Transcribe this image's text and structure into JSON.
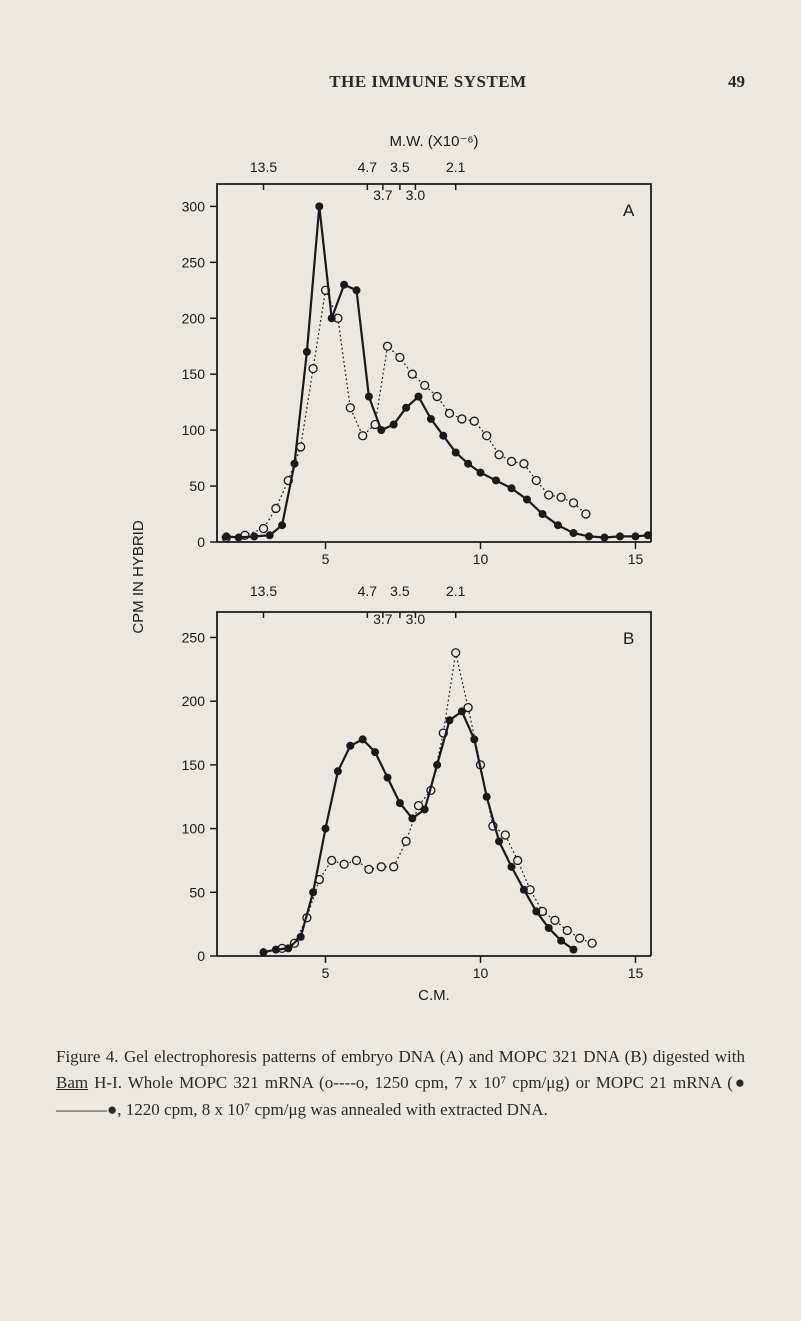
{
  "header": {
    "running_title": "THE IMMUNE SYSTEM",
    "page_number": "49"
  },
  "figure": {
    "overall_title": "M.W. (X10⁻⁶)",
    "ylabel": "CPM IN HYBRID",
    "xlabel": "C.M.",
    "mw_markers": [
      "13.5",
      "4.7",
      "3.5",
      "2.1"
    ],
    "mw_markers_inner": [
      "3.7",
      "3.0"
    ],
    "mw_marker_positions": [
      3.0,
      6.35,
      7.4,
      9.2
    ],
    "mw_marker_inner_positions": [
      6.85,
      7.9
    ],
    "panel_A": {
      "label": "A",
      "xlim": [
        1.5,
        15.5
      ],
      "ylim": [
        0,
        320
      ],
      "xticks": [
        5,
        10,
        15
      ],
      "yticks": [
        0,
        50,
        100,
        150,
        200,
        250,
        300
      ],
      "series_solid": {
        "marker": "filled-circle",
        "color": "#1a1a1a",
        "linewidth": 2.2,
        "points": [
          [
            1.8,
            5
          ],
          [
            2.2,
            4
          ],
          [
            2.7,
            5
          ],
          [
            3.2,
            6
          ],
          [
            3.6,
            15
          ],
          [
            4.0,
            70
          ],
          [
            4.4,
            170
          ],
          [
            4.8,
            300
          ],
          [
            5.2,
            200
          ],
          [
            5.6,
            230
          ],
          [
            6.0,
            225
          ],
          [
            6.4,
            130
          ],
          [
            6.8,
            100
          ],
          [
            7.2,
            105
          ],
          [
            7.6,
            120
          ],
          [
            8.0,
            130
          ],
          [
            8.4,
            110
          ],
          [
            8.8,
            95
          ],
          [
            9.2,
            80
          ],
          [
            9.6,
            70
          ],
          [
            10.0,
            62
          ],
          [
            10.5,
            55
          ],
          [
            11.0,
            48
          ],
          [
            11.5,
            38
          ],
          [
            12.0,
            25
          ],
          [
            12.5,
            15
          ],
          [
            13.0,
            8
          ],
          [
            13.5,
            5
          ],
          [
            14.0,
            4
          ],
          [
            14.5,
            5
          ],
          [
            15.0,
            5
          ],
          [
            15.4,
            6
          ]
        ]
      },
      "series_dotted": {
        "marker": "open-circle",
        "color": "#1a1a1a",
        "linewidth": 1.2,
        "linestyle": "dotted",
        "points": [
          [
            1.8,
            4
          ],
          [
            2.4,
            6
          ],
          [
            3.0,
            12
          ],
          [
            3.4,
            30
          ],
          [
            3.8,
            55
          ],
          [
            4.2,
            85
          ],
          [
            4.6,
            155
          ],
          [
            5.0,
            225
          ],
          [
            5.4,
            200
          ],
          [
            5.8,
            120
          ],
          [
            6.2,
            95
          ],
          [
            6.6,
            105
          ],
          [
            7.0,
            175
          ],
          [
            7.4,
            165
          ],
          [
            7.8,
            150
          ],
          [
            8.2,
            140
          ],
          [
            8.6,
            130
          ],
          [
            9.0,
            115
          ],
          [
            9.4,
            110
          ],
          [
            9.8,
            108
          ],
          [
            10.2,
            95
          ],
          [
            10.6,
            78
          ],
          [
            11.0,
            72
          ],
          [
            11.4,
            70
          ],
          [
            11.8,
            55
          ],
          [
            12.2,
            42
          ],
          [
            12.6,
            40
          ],
          [
            13.0,
            35
          ],
          [
            13.4,
            25
          ]
        ]
      }
    },
    "panel_B": {
      "label": "B",
      "xlim": [
        1.5,
        15.5
      ],
      "ylim": [
        0,
        270
      ],
      "xticks": [
        5,
        10,
        15
      ],
      "yticks": [
        0,
        50,
        100,
        150,
        200,
        250
      ],
      "series_solid": {
        "marker": "filled-circle",
        "color": "#1a1a1a",
        "linewidth": 2.2,
        "points": [
          [
            3.0,
            3
          ],
          [
            3.4,
            5
          ],
          [
            3.8,
            6
          ],
          [
            4.2,
            15
          ],
          [
            4.6,
            50
          ],
          [
            5.0,
            100
          ],
          [
            5.4,
            145
          ],
          [
            5.8,
            165
          ],
          [
            6.2,
            170
          ],
          [
            6.6,
            160
          ],
          [
            7.0,
            140
          ],
          [
            7.4,
            120
          ],
          [
            7.8,
            108
          ],
          [
            8.2,
            115
          ],
          [
            8.6,
            150
          ],
          [
            9.0,
            185
          ],
          [
            9.4,
            192
          ],
          [
            9.8,
            170
          ],
          [
            10.2,
            125
          ],
          [
            10.6,
            90
          ],
          [
            11.0,
            70
          ],
          [
            11.4,
            52
          ],
          [
            11.8,
            35
          ],
          [
            12.2,
            22
          ],
          [
            12.6,
            12
          ],
          [
            13.0,
            5
          ]
        ]
      },
      "series_dotted": {
        "marker": "open-circle",
        "color": "#1a1a1a",
        "linewidth": 1.2,
        "linestyle": "dotted",
        "points": [
          [
            3.6,
            6
          ],
          [
            4.0,
            10
          ],
          [
            4.4,
            30
          ],
          [
            4.8,
            60
          ],
          [
            5.2,
            75
          ],
          [
            5.6,
            72
          ],
          [
            6.0,
            75
          ],
          [
            6.4,
            68
          ],
          [
            6.8,
            70
          ],
          [
            7.2,
            70
          ],
          [
            7.6,
            90
          ],
          [
            8.0,
            118
          ],
          [
            8.4,
            130
          ],
          [
            8.8,
            175
          ],
          [
            9.2,
            238
          ],
          [
            9.6,
            195
          ],
          [
            10.0,
            150
          ],
          [
            10.4,
            102
          ],
          [
            10.8,
            95
          ],
          [
            11.2,
            75
          ],
          [
            11.6,
            52
          ],
          [
            12.0,
            35
          ],
          [
            12.4,
            28
          ],
          [
            12.8,
            20
          ],
          [
            13.2,
            14
          ],
          [
            13.6,
            10
          ]
        ]
      }
    },
    "colors": {
      "ink": "#1a1a1a",
      "paper": "#ece8e0"
    },
    "typography": {
      "axis_label_fontsize": 15,
      "tick_fontsize": 14,
      "panel_label_fontsize": 17
    }
  },
  "caption": {
    "prefix": "Figure 4.",
    "body_1": "Gel electrophoresis patterns of embryo DNA (A) and MOPC 321 DNA (B) digested with ",
    "bam": "Bam",
    "body_2": " H-I.  Whole MOPC 321 mRNA (o----o, 1250 cpm, 7 x 10⁷ cpm/μg) or MOPC 21 mRNA (●———●, 1220 cpm, 8 x 10⁷ cpm/μg was annealed with extracted DNA."
  }
}
